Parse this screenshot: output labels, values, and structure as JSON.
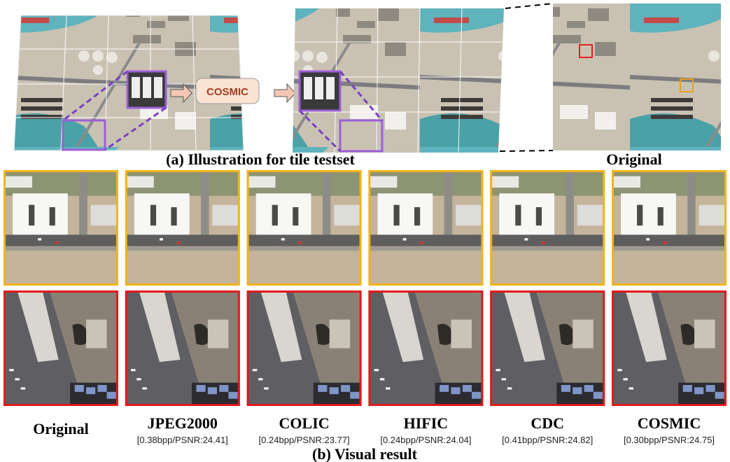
{
  "figure": {
    "cosmic_box": "COSMIC",
    "caption_a": "(a) Illustration for tile testset",
    "original_label": "Original",
    "methods": [
      {
        "name": "Original"
      },
      {
        "name": "JPEG2000",
        "metrics": "[0.38bpp/PSNR:24.41]"
      },
      {
        "name": "COLIC",
        "metrics": "[0.24bpp/PSNR:23.77]"
      },
      {
        "name": "HIFIC",
        "metrics": "[0.24bpp/PSNR:24.04]"
      },
      {
        "name": "CDC",
        "metrics": "[0.41bpp/PSNR:24.82]"
      },
      {
        "name": "COSMIC",
        "metrics": "[0.30bpp/PSNR:24.75]"
      }
    ],
    "caption_b": "(b) Visual result"
  }
}
